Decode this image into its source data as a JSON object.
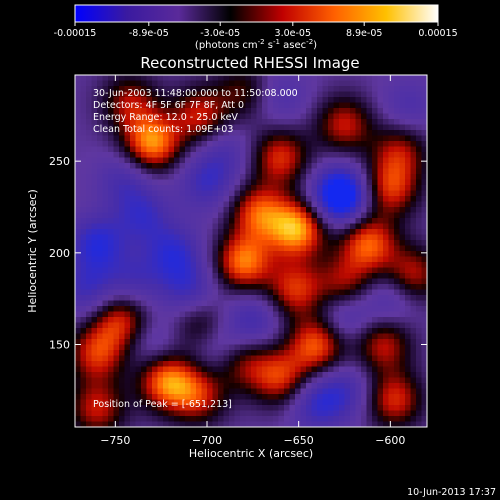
{
  "colorbar": {
    "ticks": [
      "-0.00015",
      "-8.9e-05",
      "-3.0e-05",
      "3.0e-05",
      "8.9e-05",
      "0.00015"
    ],
    "units_prefix": "(photons cm",
    "units_exp1": "-2",
    "units_mid": " s",
    "units_exp2": "-1",
    "units_mid2": " asec",
    "units_exp3": "-2",
    "units_suffix": ")",
    "colors": [
      "#0000ff",
      "#3a1aa0",
      "#5a2a9a",
      "#000000",
      "#c00000",
      "#ff6000",
      "#ffc000",
      "#ffffff"
    ]
  },
  "annotations": {
    "time_range": "30-Jun-2003 11:48:00.000 to 11:50:08.000",
    "detectors": "Detectors: 4F 5F 6F 7F 8F, Att 0",
    "energy": "Energy Range: 12.0 - 25.0 keV",
    "clean": "Clean     Total counts: 1.09E+03",
    "peak": "Position of Peak = [-651,213]"
  },
  "footer": {
    "date": "10-Jun-2013 17:37"
  },
  "chart_data": {
    "type": "heatmap",
    "title": "Reconstructed RHESSI Image",
    "xlabel": "Heliocentric X (arcsec)",
    "ylabel": "Heliocentric Y (arcsec)",
    "xlim": [
      -772,
      -580
    ],
    "ylim": [
      105,
      297
    ],
    "xticks": [
      -750,
      -700,
      -650,
      -600
    ],
    "yticks": [
      150,
      200,
      250
    ],
    "clim": [
      -0.00015,
      0.00015
    ],
    "peak": [
      -651,
      213
    ],
    "blobs": [
      {
        "x": -730,
        "y": 260,
        "v": 0.00014
      },
      {
        "x": -742,
        "y": 282,
        "v": 8e-05
      },
      {
        "x": -704,
        "y": 275,
        "v": 9e-05
      },
      {
        "x": -680,
        "y": 288,
        "v": 6e-05
      },
      {
        "x": -660,
        "y": 252,
        "v": 0.0001
      },
      {
        "x": -625,
        "y": 270,
        "v": 9e-05
      },
      {
        "x": -595,
        "y": 255,
        "v": 8e-05
      },
      {
        "x": -600,
        "y": 235,
        "v": 0.0001
      },
      {
        "x": -672,
        "y": 222,
        "v": 0.00011
      },
      {
        "x": -680,
        "y": 195,
        "v": 0.00013
      },
      {
        "x": -651,
        "y": 213,
        "v": 0.00015
      },
      {
        "x": -652,
        "y": 180,
        "v": 0.0001
      },
      {
        "x": -612,
        "y": 205,
        "v": 0.00012
      },
      {
        "x": -588,
        "y": 188,
        "v": 9e-05
      },
      {
        "x": -625,
        "y": 183,
        "v": 8e-05
      },
      {
        "x": -703,
        "y": 160,
        "v": 7e-05
      },
      {
        "x": -747,
        "y": 163,
        "v": 0.0001
      },
      {
        "x": -760,
        "y": 145,
        "v": 0.0001
      },
      {
        "x": -722,
        "y": 130,
        "v": 0.00013
      },
      {
        "x": -705,
        "y": 122,
        "v": 9e-05
      },
      {
        "x": -760,
        "y": 115,
        "v": 9e-05
      },
      {
        "x": -680,
        "y": 140,
        "v": 7e-05
      },
      {
        "x": -660,
        "y": 132,
        "v": 0.0001
      },
      {
        "x": -640,
        "y": 150,
        "v": 0.00012
      },
      {
        "x": -604,
        "y": 150,
        "v": 9e-05
      },
      {
        "x": -598,
        "y": 120,
        "v": 0.0001
      },
      {
        "x": -627,
        "y": 231,
        "v": -0.00015
      },
      {
        "x": -760,
        "y": 205,
        "v": -8e-05
      },
      {
        "x": -735,
        "y": 220,
        "v": -6e-05
      },
      {
        "x": -718,
        "y": 200,
        "v": -7e-05
      },
      {
        "x": -740,
        "y": 185,
        "v": -5e-05
      },
      {
        "x": -700,
        "y": 238,
        "v": -6e-05
      },
      {
        "x": -690,
        "y": 255,
        "v": -4e-05
      },
      {
        "x": -710,
        "y": 180,
        "v": -6e-05
      },
      {
        "x": -695,
        "y": 150,
        "v": -5e-05
      },
      {
        "x": -730,
        "y": 150,
        "v": -4e-05
      },
      {
        "x": -675,
        "y": 163,
        "v": -6e-05
      },
      {
        "x": -640,
        "y": 118,
        "v": -7e-05
      },
      {
        "x": -623,
        "y": 125,
        "v": -5e-05
      },
      {
        "x": -625,
        "y": 165,
        "v": -6e-05
      },
      {
        "x": -600,
        "y": 175,
        "v": -5e-05
      },
      {
        "x": -590,
        "y": 280,
        "v": -4e-05
      },
      {
        "x": -660,
        "y": 285,
        "v": -4e-05
      },
      {
        "x": -745,
        "y": 240,
        "v": -5e-05
      },
      {
        "x": -765,
        "y": 180,
        "v": -6e-05
      }
    ]
  }
}
